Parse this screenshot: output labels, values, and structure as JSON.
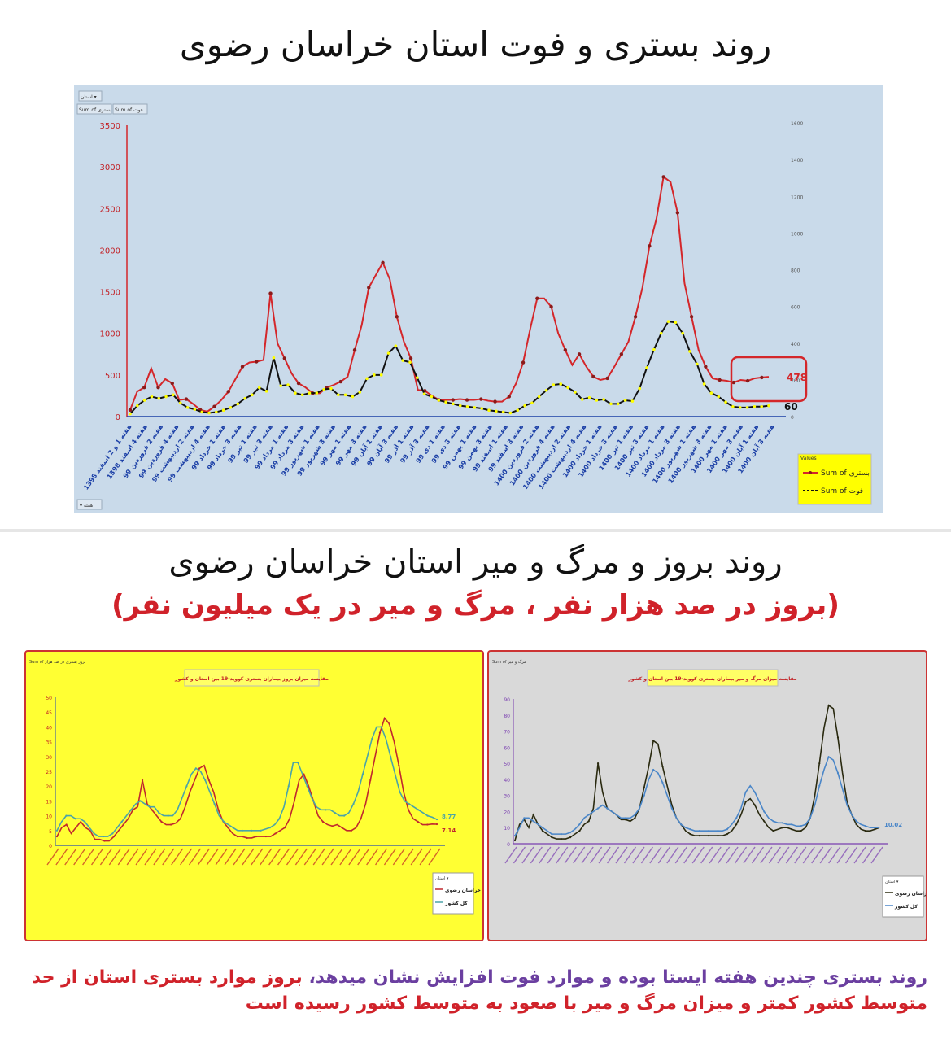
{
  "top": {
    "title": "روند بستری و فوت استان خراسان رضوی"
  },
  "bottom": {
    "title": "روند بروز و مرگ و میر استان خراسان رضوی",
    "subtitle": "(بروز در صد هزار نفر ، مرگ و میر در یک میلیون نفر)"
  },
  "footer": {
    "part1": "روند بستری چندین هفته ایستا بوده و موارد فوت افزایش نشان میدهد،",
    "part2": " بروز موارد بستری استان از حد متوسط کشور کمتر و میزان مرگ و میر با صعود به متوسط کشور رسیده است"
  },
  "colors": {
    "hospital": "#d4262a",
    "death": "#111111",
    "marker_yellow": "#ffff00",
    "province_red": "#c0282e",
    "country_teal": "#4aa3a8",
    "country_blue": "#4a86c8",
    "province_dark": "#2a2a10",
    "highlight_box": "#d4262a"
  },
  "chart_data": [
    {
      "type": "line",
      "filter_label": "استان",
      "field_buttons": [
        "Sum of بستری",
        "Sum of فوت"
      ],
      "bottom_button": "هفته",
      "legend_title": "Values",
      "legend_position": "bottom-right",
      "left_axis": {
        "ylim": [
          0,
          3500
        ],
        "ticks": [
          "0",
          "500",
          "1000",
          "1500",
          "2000",
          "2500",
          "3000",
          "3500"
        ]
      },
      "right_axis": {
        "ylim": [
          0,
          1600
        ],
        "ticks": [
          "0",
          "200",
          "400",
          "600",
          "800",
          "1000",
          "1200",
          "1400",
          "1600"
        ]
      },
      "x_tick_labels": [
        "هفته 1 و 2 اسفند 1398",
        "هفته 4 اسفند 1398",
        "هفته 2 فروردین 99",
        "هفته 4 فروردین 99",
        "هفته 2 اردیبهشت 99",
        "هفته 4 اردیبهشت 99",
        "هفته 1 خرداد 99",
        "هفته 3 خرداد 99",
        "هفته 1 تیر 99",
        "هفته 3 تیر 99",
        "هفته 1 مرداد 99",
        "هفته 3 مرداد 99",
        "هفته 1 شهریور 99",
        "هفته 3 شهریور 99",
        "هفته 1 مهر 99",
        "هفته 3 مهر 99",
        "هفته 1 آبان 99",
        "هفته 3 آبان 99",
        "هفته 1 آذر 99",
        "هفته 3 آذر 99",
        "هفته 1 دی 99",
        "هفته 3 دی 99",
        "هفته 1 بهمن 99",
        "هفته 3 بهمن 99",
        "هفته 1 اسفند 99",
        "هفته 3 اسفند 99",
        "هفته 2 فروردین 1400",
        "هفته 4 فروردین 1400",
        "هفته 2 اردیبهشت 1400",
        "هفته 4 اردیبهشت 1400",
        "هفته 1 خرداد 1400",
        "هفته 3 خرداد 1400",
        "هفته 1 تیر 1400",
        "هفته 3 تیر 1400",
        "هفته 1 مرداد 1400",
        "هفته 3 مرداد 1400",
        "هفته 1 شهریور 1400",
        "هفته 3 شهریور 1400",
        "هفته 1 مهر 1400",
        "هفته 3 مهر 1400",
        "هفته 1 آبان 1400",
        "هفته 3 آبان 1400"
      ],
      "series": [
        {
          "name": "Sum of بستری",
          "axis": "left",
          "values": [
            80,
            300,
            350,
            580,
            350,
            450,
            400,
            200,
            210,
            150,
            80,
            60,
            120,
            200,
            300,
            450,
            600,
            650,
            660,
            680,
            1480,
            880,
            700,
            520,
            400,
            350,
            280,
            280,
            350,
            380,
            420,
            480,
            800,
            1100,
            1550,
            1700,
            1850,
            1650,
            1200,
            900,
            700,
            320,
            310,
            250,
            200,
            200,
            200,
            210,
            200,
            200,
            210,
            190,
            180,
            180,
            240,
            400,
            650,
            1050,
            1420,
            1420,
            1320,
            1000,
            800,
            620,
            750,
            600,
            480,
            440,
            460,
            600,
            750,
            900,
            1200,
            1550,
            2050,
            2380,
            2880,
            2820,
            2450,
            1600,
            1200,
            800,
            600,
            460,
            440,
            430,
            410,
            440,
            430,
            460,
            470,
            478
          ]
        },
        {
          "name": "Sum of فوت",
          "axis": "right",
          "values": [
            15,
            60,
            90,
            110,
            100,
            110,
            120,
            75,
            50,
            40,
            25,
            20,
            25,
            35,
            50,
            70,
            100,
            120,
            160,
            140,
            325,
            170,
            175,
            130,
            120,
            130,
            130,
            150,
            155,
            120,
            120,
            110,
            135,
            210,
            230,
            230,
            350,
            390,
            310,
            300,
            215,
            125,
            110,
            90,
            80,
            70,
            60,
            55,
            50,
            45,
            35,
            30,
            25,
            20,
            35,
            60,
            75,
            110,
            145,
            175,
            180,
            160,
            135,
            95,
            105,
            90,
            95,
            70,
            70,
            90,
            85,
            155,
            270,
            370,
            460,
            525,
            520,
            460,
            360,
            290,
            180,
            130,
            110,
            80,
            55,
            50,
            50,
            55,
            55,
            60
          ]
        }
      ],
      "highlight_label": "478",
      "end_label_death": "60"
    },
    {
      "type": "line",
      "title": "مقایسه میزان بروز بیماران بستری کووید-19 بین استان و کشور",
      "filter_label": "Sum of بروز بستری در صد هزار",
      "ylim": [
        0,
        50
      ],
      "yticks": [
        "0",
        "5",
        "10",
        "15",
        "20",
        "25",
        "30",
        "35",
        "40",
        "45",
        "50"
      ],
      "legend_title": "استان",
      "legend_position": "bottom-right",
      "series": [
        {
          "name": "خراسان رضوی",
          "values": [
            3,
            6,
            7,
            4,
            6,
            8,
            6,
            5,
            2,
            2,
            1.5,
            1.5,
            3,
            5,
            7,
            9,
            12,
            13,
            22,
            14,
            12,
            10,
            8,
            7,
            7,
            7.5,
            9,
            13,
            18,
            22,
            26,
            27,
            22,
            18,
            12,
            8,
            6,
            4,
            3,
            3,
            2.5,
            2.5,
            3,
            3,
            3,
            3,
            4,
            5,
            6,
            9,
            15,
            22,
            24,
            20,
            15,
            10,
            8,
            7,
            6.5,
            7,
            6,
            5,
            5,
            6,
            9,
            14,
            22,
            30,
            38,
            43,
            41,
            35,
            27,
            18,
            12,
            9,
            8,
            7,
            7,
            7.2,
            7.14
          ]
        },
        {
          "name": "کل کشور",
          "values": [
            5,
            8,
            10,
            10,
            9,
            9,
            8,
            6,
            4,
            3,
            3,
            3,
            4,
            6,
            8,
            10,
            12,
            14,
            15,
            14,
            13,
            13,
            11,
            10,
            10,
            10,
            12,
            16,
            20,
            24,
            26,
            25,
            22,
            18,
            14,
            10,
            8,
            7,
            6,
            5,
            5,
            5,
            5,
            5,
            5,
            5.5,
            6,
            7,
            9,
            13,
            20,
            28,
            28,
            24,
            20,
            16,
            13,
            12,
            12,
            12,
            11,
            10,
            10,
            11,
            14,
            18,
            24,
            30,
            36,
            40,
            40,
            36,
            30,
            24,
            18,
            15,
            14,
            13,
            12,
            11,
            10,
            9.5,
            8.77
          ]
        }
      ],
      "end_labels": [
        "8.77",
        "7.14"
      ]
    },
    {
      "type": "line",
      "title": "مقایسه میزان مرگ و میر بیماران بستری کووید-19 بین استان و کشور",
      "filter_label": "Sum of مرگ و میر",
      "ylim": [
        0,
        90
      ],
      "yticks": [
        "0",
        "10",
        "20",
        "30",
        "40",
        "50",
        "60",
        "70",
        "80",
        "90"
      ],
      "legend_title": "استان",
      "legend_position": "bottom-right",
      "series": [
        {
          "name": "خراسان رضوی",
          "values": [
            2,
            12,
            15,
            10,
            18,
            12,
            8,
            6,
            4,
            3,
            3,
            3,
            4,
            6,
            8,
            12,
            14,
            22,
            50,
            32,
            22,
            20,
            18,
            15,
            15,
            14,
            16,
            22,
            35,
            48,
            64,
            62,
            48,
            36,
            24,
            16,
            12,
            8,
            6,
            5,
            5,
            5,
            5,
            5,
            5,
            5,
            6,
            8,
            12,
            18,
            26,
            28,
            24,
            18,
            14,
            10,
            8,
            9,
            10,
            10,
            9,
            8,
            8,
            10,
            16,
            30,
            50,
            72,
            86,
            84,
            66,
            44,
            26,
            18,
            12,
            9,
            8,
            8,
            9,
            10
          ]
        },
        {
          "name": "کل کشور",
          "values": [
            5,
            10,
            16,
            16,
            14,
            12,
            10,
            8,
            6,
            6,
            6,
            6,
            7,
            9,
            12,
            16,
            18,
            20,
            22,
            24,
            22,
            20,
            18,
            16,
            16,
            16,
            18,
            22,
            30,
            40,
            46,
            44,
            38,
            30,
            22,
            16,
            12,
            10,
            9,
            8,
            8,
            8,
            8,
            8,
            8,
            8,
            9,
            12,
            16,
            22,
            32,
            36,
            32,
            26,
            20,
            16,
            14,
            13,
            13,
            12,
            12,
            11,
            11,
            12,
            16,
            24,
            36,
            46,
            54,
            52,
            44,
            34,
            24,
            18,
            14,
            12,
            11,
            10,
            10,
            10.02
          ]
        }
      ],
      "end_labels": [
        "10.02"
      ]
    }
  ]
}
